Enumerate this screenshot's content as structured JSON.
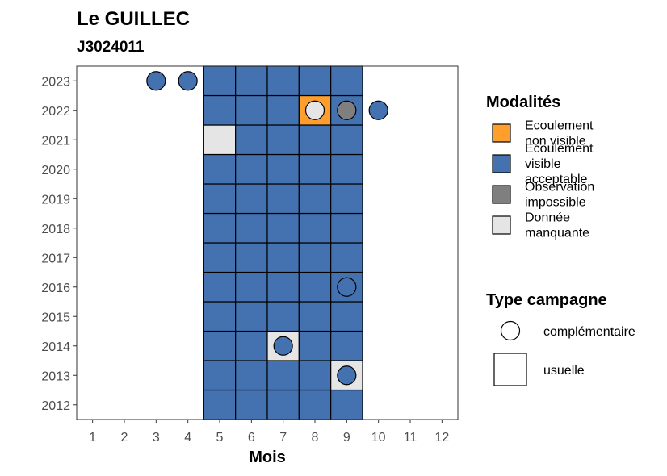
{
  "chart_data": {
    "type": "heatmap",
    "title": "Le GUILLEC",
    "subtitle": "J3024011",
    "xlabel": "Mois",
    "ylabel": "",
    "x_ticks": [
      "1",
      "2",
      "3",
      "4",
      "5",
      "6",
      "7",
      "8",
      "9",
      "10",
      "11",
      "12"
    ],
    "y_ticks": [
      "2012",
      "2013",
      "2014",
      "2015",
      "2016",
      "2017",
      "2018",
      "2019",
      "2020",
      "2021",
      "2022",
      "2023"
    ],
    "xlim": [
      0.5,
      12.5
    ],
    "ylim": [
      2011.5,
      2023.5
    ],
    "grid": false,
    "legend_position": "right",
    "modalites": {
      "title": "Modalités",
      "items": [
        {
          "key": "non_visible",
          "label_lines": [
            "Ecoulement",
            "non visible"
          ],
          "color": "#FF9E2C"
        },
        {
          "key": "visible",
          "label_lines": [
            "Ecoulement",
            "visible",
            "acceptable"
          ],
          "color": "#4472B0"
        },
        {
          "key": "impossible",
          "label_lines": [
            "Observation",
            "impossible"
          ],
          "color": "#7F7F7F"
        },
        {
          "key": "manquante",
          "label_lines": [
            "Donnée",
            "manquante"
          ],
          "color": "#E5E5E5"
        }
      ]
    },
    "type_campagne": {
      "title": "Type campagne",
      "items": [
        {
          "key": "complementaire",
          "label": "complémentaire",
          "shape": "circle"
        },
        {
          "key": "usuelle",
          "label": "usuelle",
          "shape": "square"
        }
      ]
    },
    "usuelle_tiles": [
      {
        "year": 2012,
        "month": 5,
        "value": "visible"
      },
      {
        "year": 2012,
        "month": 6,
        "value": "visible"
      },
      {
        "year": 2012,
        "month": 7,
        "value": "visible"
      },
      {
        "year": 2012,
        "month": 8,
        "value": "visible"
      },
      {
        "year": 2012,
        "month": 9,
        "value": "visible"
      },
      {
        "year": 2013,
        "month": 5,
        "value": "visible"
      },
      {
        "year": 2013,
        "month": 6,
        "value": "visible"
      },
      {
        "year": 2013,
        "month": 7,
        "value": "visible"
      },
      {
        "year": 2013,
        "month": 8,
        "value": "visible"
      },
      {
        "year": 2013,
        "month": 9,
        "value": "manquante"
      },
      {
        "year": 2014,
        "month": 5,
        "value": "visible"
      },
      {
        "year": 2014,
        "month": 6,
        "value": "visible"
      },
      {
        "year": 2014,
        "month": 7,
        "value": "manquante"
      },
      {
        "year": 2014,
        "month": 8,
        "value": "visible"
      },
      {
        "year": 2014,
        "month": 9,
        "value": "visible"
      },
      {
        "year": 2015,
        "month": 5,
        "value": "visible"
      },
      {
        "year": 2015,
        "month": 6,
        "value": "visible"
      },
      {
        "year": 2015,
        "month": 7,
        "value": "visible"
      },
      {
        "year": 2015,
        "month": 8,
        "value": "visible"
      },
      {
        "year": 2015,
        "month": 9,
        "value": "visible"
      },
      {
        "year": 2016,
        "month": 5,
        "value": "visible"
      },
      {
        "year": 2016,
        "month": 6,
        "value": "visible"
      },
      {
        "year": 2016,
        "month": 7,
        "value": "visible"
      },
      {
        "year": 2016,
        "month": 8,
        "value": "visible"
      },
      {
        "year": 2016,
        "month": 9,
        "value": "visible"
      },
      {
        "year": 2017,
        "month": 5,
        "value": "visible"
      },
      {
        "year": 2017,
        "month": 6,
        "value": "visible"
      },
      {
        "year": 2017,
        "month": 7,
        "value": "visible"
      },
      {
        "year": 2017,
        "month": 8,
        "value": "visible"
      },
      {
        "year": 2017,
        "month": 9,
        "value": "visible"
      },
      {
        "year": 2018,
        "month": 5,
        "value": "visible"
      },
      {
        "year": 2018,
        "month": 6,
        "value": "visible"
      },
      {
        "year": 2018,
        "month": 7,
        "value": "visible"
      },
      {
        "year": 2018,
        "month": 8,
        "value": "visible"
      },
      {
        "year": 2018,
        "month": 9,
        "value": "visible"
      },
      {
        "year": 2019,
        "month": 5,
        "value": "visible"
      },
      {
        "year": 2019,
        "month": 6,
        "value": "visible"
      },
      {
        "year": 2019,
        "month": 7,
        "value": "visible"
      },
      {
        "year": 2019,
        "month": 8,
        "value": "visible"
      },
      {
        "year": 2019,
        "month": 9,
        "value": "visible"
      },
      {
        "year": 2020,
        "month": 5,
        "value": "visible"
      },
      {
        "year": 2020,
        "month": 6,
        "value": "visible"
      },
      {
        "year": 2020,
        "month": 7,
        "value": "visible"
      },
      {
        "year": 2020,
        "month": 8,
        "value": "visible"
      },
      {
        "year": 2020,
        "month": 9,
        "value": "visible"
      },
      {
        "year": 2021,
        "month": 5,
        "value": "manquante"
      },
      {
        "year": 2021,
        "month": 6,
        "value": "visible"
      },
      {
        "year": 2021,
        "month": 7,
        "value": "visible"
      },
      {
        "year": 2021,
        "month": 8,
        "value": "visible"
      },
      {
        "year": 2021,
        "month": 9,
        "value": "visible"
      },
      {
        "year": 2022,
        "month": 5,
        "value": "visible"
      },
      {
        "year": 2022,
        "month": 6,
        "value": "visible"
      },
      {
        "year": 2022,
        "month": 7,
        "value": "visible"
      },
      {
        "year": 2022,
        "month": 8,
        "value": "non_visible"
      },
      {
        "year": 2022,
        "month": 9,
        "value": "visible"
      },
      {
        "year": 2023,
        "month": 5,
        "value": "visible"
      },
      {
        "year": 2023,
        "month": 6,
        "value": "visible"
      },
      {
        "year": 2023,
        "month": 7,
        "value": "visible"
      },
      {
        "year": 2023,
        "month": 8,
        "value": "visible"
      },
      {
        "year": 2023,
        "month": 9,
        "value": "visible"
      }
    ],
    "complementaire_points": [
      {
        "year": 2023,
        "month": 3,
        "value": "visible"
      },
      {
        "year": 2023,
        "month": 4,
        "value": "visible"
      },
      {
        "year": 2022,
        "month": 8,
        "value": "manquante"
      },
      {
        "year": 2022,
        "month": 9,
        "value": "impossible"
      },
      {
        "year": 2022,
        "month": 10,
        "value": "visible"
      },
      {
        "year": 2016,
        "month": 9,
        "value": "visible"
      },
      {
        "year": 2014,
        "month": 7,
        "value": "visible"
      },
      {
        "year": 2013,
        "month": 9,
        "value": "visible"
      }
    ]
  }
}
